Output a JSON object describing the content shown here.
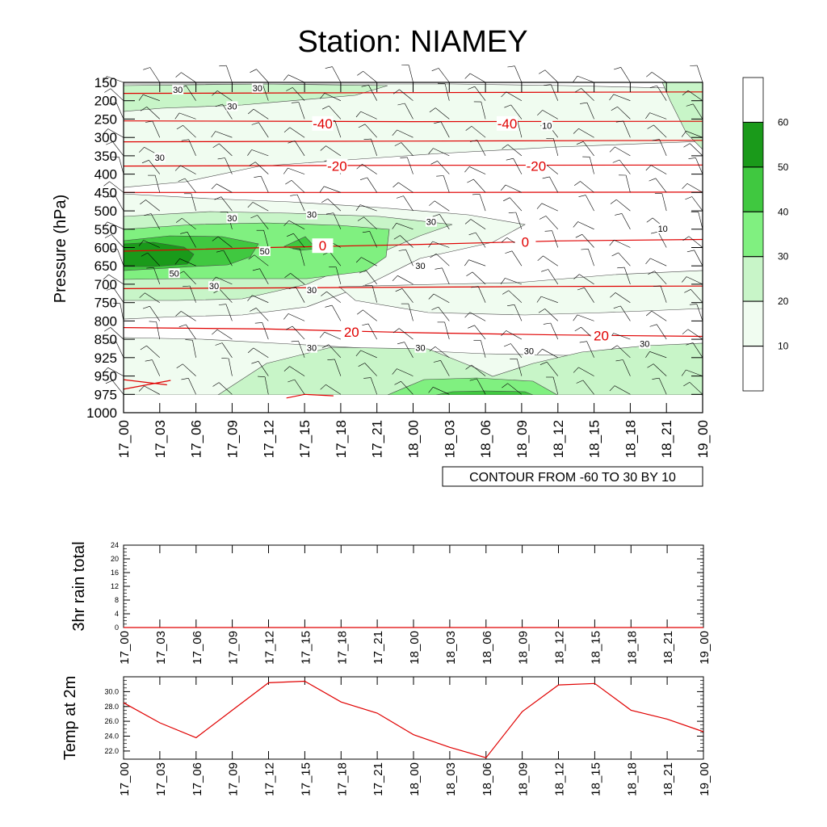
{
  "chart_data": [
    {
      "type": "heatmap",
      "title": "Station: NIAMEY",
      "ylabel": "Pressure (hPa)",
      "y_levels": [
        "150",
        "200",
        "250",
        "300",
        "350",
        "400",
        "450",
        "500",
        "550",
        "600",
        "650",
        "700",
        "750",
        "800",
        "850",
        "925",
        "950",
        "975",
        "1000"
      ],
      "x_labels": [
        "17_00",
        "17_03",
        "17_06",
        "17_09",
        "17_12",
        "17_15",
        "17_18",
        "17_21",
        "18_00",
        "18_03",
        "18_06",
        "18_09",
        "18_12",
        "18_15",
        "18_18",
        "18_21",
        "19_00"
      ],
      "colorbar": {
        "levels": [
          "10",
          "20",
          "30",
          "40",
          "50",
          "60"
        ],
        "colors": [
          "#ffffff",
          "#f0fcf0",
          "#c8f5c8",
          "#80f080",
          "#40c840",
          "#1a9a1a",
          "#ffffff"
        ]
      },
      "humidity_contour_labels": [
        {
          "text": "30",
          "x": 1.5,
          "p": 170
        },
        {
          "text": "30",
          "x": 3.7,
          "p": 165
        },
        {
          "text": "30",
          "x": 3.0,
          "p": 215
        },
        {
          "text": "30",
          "x": 1.0,
          "p": 355
        },
        {
          "text": "30",
          "x": 3.0,
          "p": 520
        },
        {
          "text": "30",
          "x": 5.2,
          "p": 510
        },
        {
          "text": "30",
          "x": 8.5,
          "p": 530
        },
        {
          "text": "50",
          "x": 3.9,
          "p": 610
        },
        {
          "text": "50",
          "x": 1.4,
          "p": 670
        },
        {
          "text": "30",
          "x": 8.2,
          "p": 650
        },
        {
          "text": "30",
          "x": 2.5,
          "p": 705
        },
        {
          "text": "30",
          "x": 5.2,
          "p": 715
        },
        {
          "text": "30",
          "x": 5.2,
          "p": 885
        },
        {
          "text": "30",
          "x": 8.2,
          "p": 885
        },
        {
          "text": "30",
          "x": 11.2,
          "p": 898
        },
        {
          "text": "30",
          "x": 14.4,
          "p": 868
        },
        {
          "text": "10",
          "x": 11.7,
          "p": 268
        },
        {
          "text": "10",
          "x": 14.9,
          "p": 548
        }
      ],
      "temperature_contour_labels": [
        {
          "text": "-40",
          "x": 5.5,
          "p": 262
        },
        {
          "text": "-40",
          "x": 10.6,
          "p": 262
        },
        {
          "text": "-20",
          "x": 5.9,
          "p": 378
        },
        {
          "text": "-20",
          "x": 11.4,
          "p": 378
        },
        {
          "text": "0",
          "x": 5.5,
          "p": 595
        },
        {
          "text": "0",
          "x": 11.1,
          "p": 585
        },
        {
          "text": "20",
          "x": 6.3,
          "p": 830
        },
        {
          "text": "20",
          "x": 13.2,
          "p": 840
        }
      ],
      "annotation": "CONTOUR FROM -60 TO 30 BY 10"
    },
    {
      "type": "line",
      "ylabel": "3hr rain total",
      "x": [
        "17_00",
        "17_03",
        "17_06",
        "17_09",
        "17_12",
        "17_15",
        "17_18",
        "17_21",
        "18_00",
        "18_03",
        "18_06",
        "18_09",
        "18_12",
        "18_15",
        "18_18",
        "18_21",
        "19_00"
      ],
      "y_ticks": [
        "0",
        "4",
        "8",
        "12",
        "16",
        "20",
        "24"
      ],
      "ylim": [
        0,
        24
      ],
      "values": [
        0,
        0,
        0,
        0,
        0,
        0,
        0,
        0,
        0,
        0,
        0,
        0,
        0,
        0,
        0,
        0,
        0
      ],
      "color": "#e00000"
    },
    {
      "type": "line",
      "ylabel": "Temp at 2m",
      "x": [
        "17_00",
        "17_03",
        "17_06",
        "17_09",
        "17_12",
        "17_15",
        "17_18",
        "17_21",
        "18_00",
        "18_03",
        "18_06",
        "18_09",
        "18_12",
        "18_15",
        "18_18",
        "18_21",
        "19_00"
      ],
      "y_ticks": [
        "22.0",
        "24.0",
        "26.0",
        "28.0",
        "30.0"
      ],
      "ylim": [
        20.9,
        32.0
      ],
      "values": [
        28.5,
        25.8,
        23.8,
        27.5,
        31.2,
        31.4,
        28.6,
        27.1,
        24.2,
        22.5,
        21.1,
        27.3,
        30.9,
        31.1,
        27.5,
        26.3,
        24.6
      ],
      "color": "#e00000"
    }
  ]
}
